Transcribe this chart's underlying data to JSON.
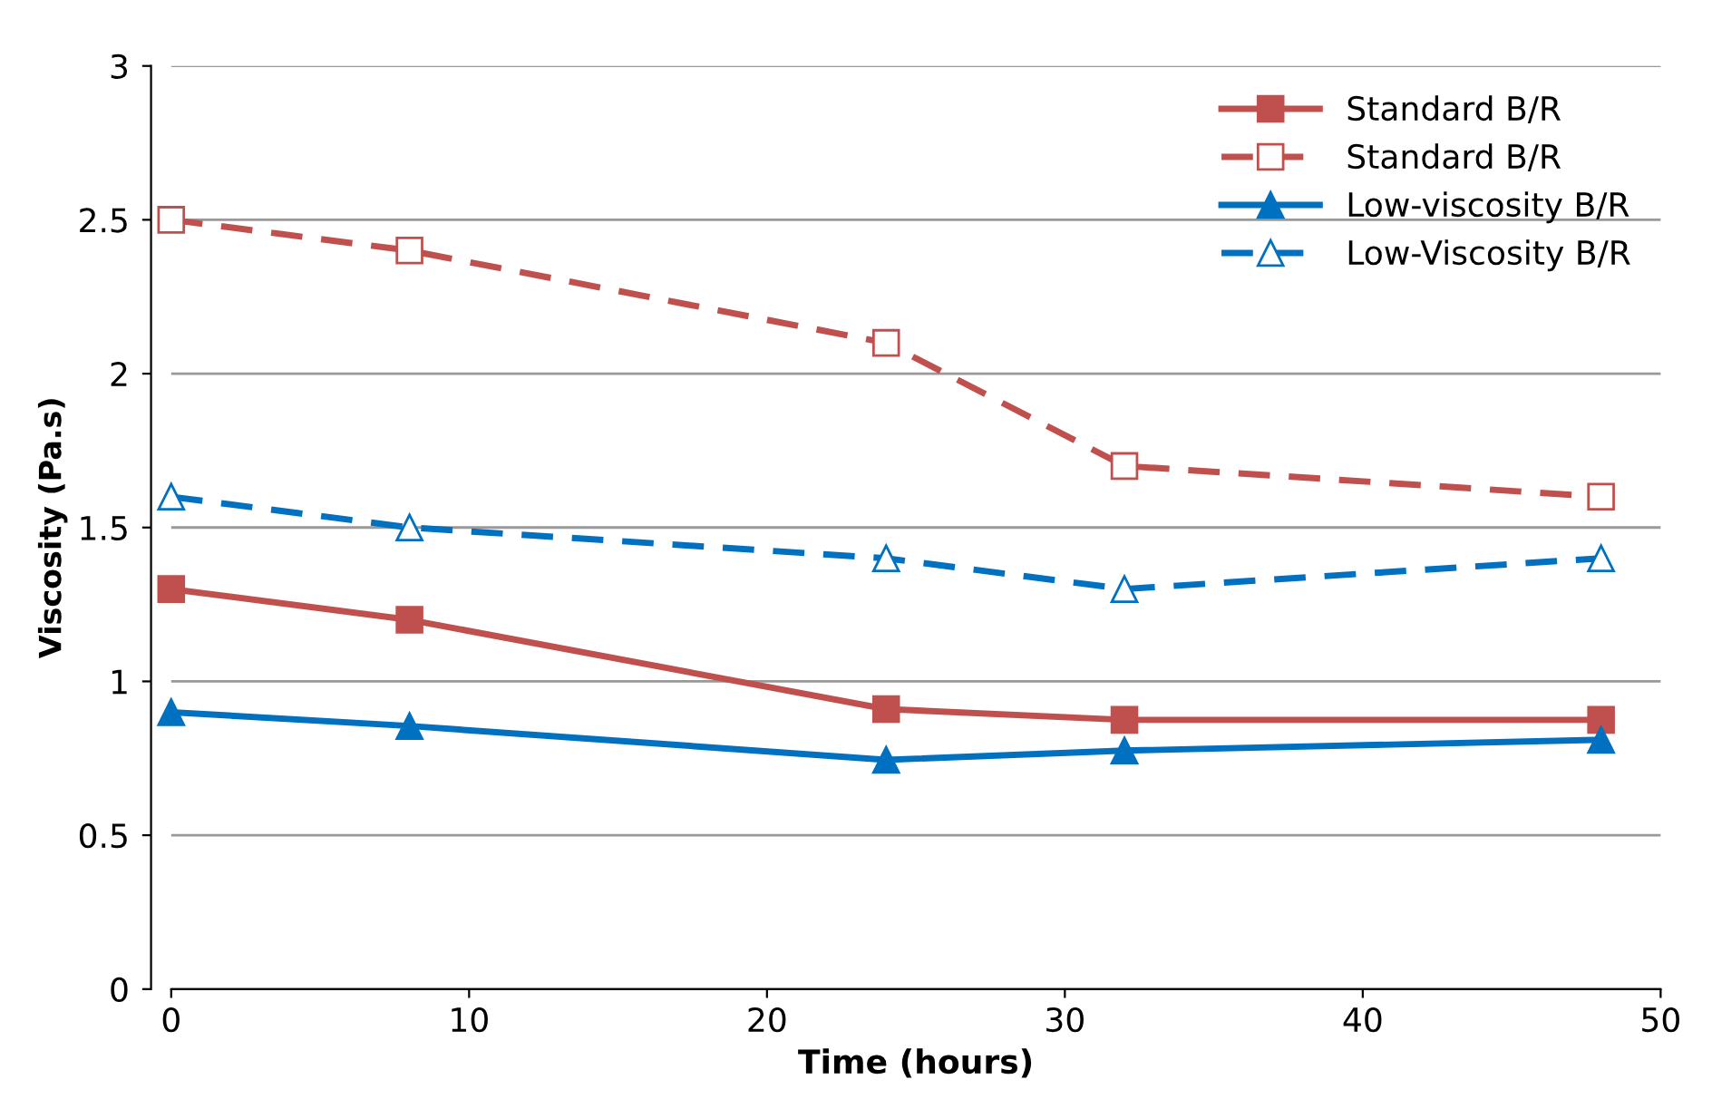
{
  "chart_data": {
    "type": "line",
    "xlabel": "Time (hours)",
    "ylabel": "Viscosity (Pa.s)",
    "x": [
      0,
      8,
      24,
      32,
      48
    ],
    "series": [
      {
        "name": "Standard B/R",
        "color": "#c0504d",
        "marker": "square",
        "line_style": "solid",
        "values": [
          1.3,
          1.2,
          0.91,
          0.875,
          0.875
        ]
      },
      {
        "name": "Standard B/R",
        "color": "#c0504d",
        "marker": "square",
        "line_style": "dashed",
        "values": [
          2.5,
          2.4,
          2.1,
          1.7,
          1.6
        ]
      },
      {
        "name": "Low-viscosity B/R",
        "color": "#0070c0",
        "marker": "triangle",
        "line_style": "solid",
        "values": [
          0.9,
          0.855,
          0.745,
          0.775,
          0.81
        ]
      },
      {
        "name": "Low-Viscosity B/R",
        "color": "#0070c0",
        "marker": "triangle",
        "line_style": "dashed",
        "values": [
          1.6,
          1.5,
          1.4,
          1.3,
          1.4
        ]
      }
    ],
    "xlim": [
      0,
      50
    ],
    "xticks": [
      0,
      10,
      20,
      30,
      40,
      50
    ],
    "ylim": [
      0,
      3
    ],
    "yticks": [
      0,
      0.5,
      1,
      1.5,
      2,
      2.5,
      3
    ],
    "grid": "y",
    "legend": "top right"
  }
}
